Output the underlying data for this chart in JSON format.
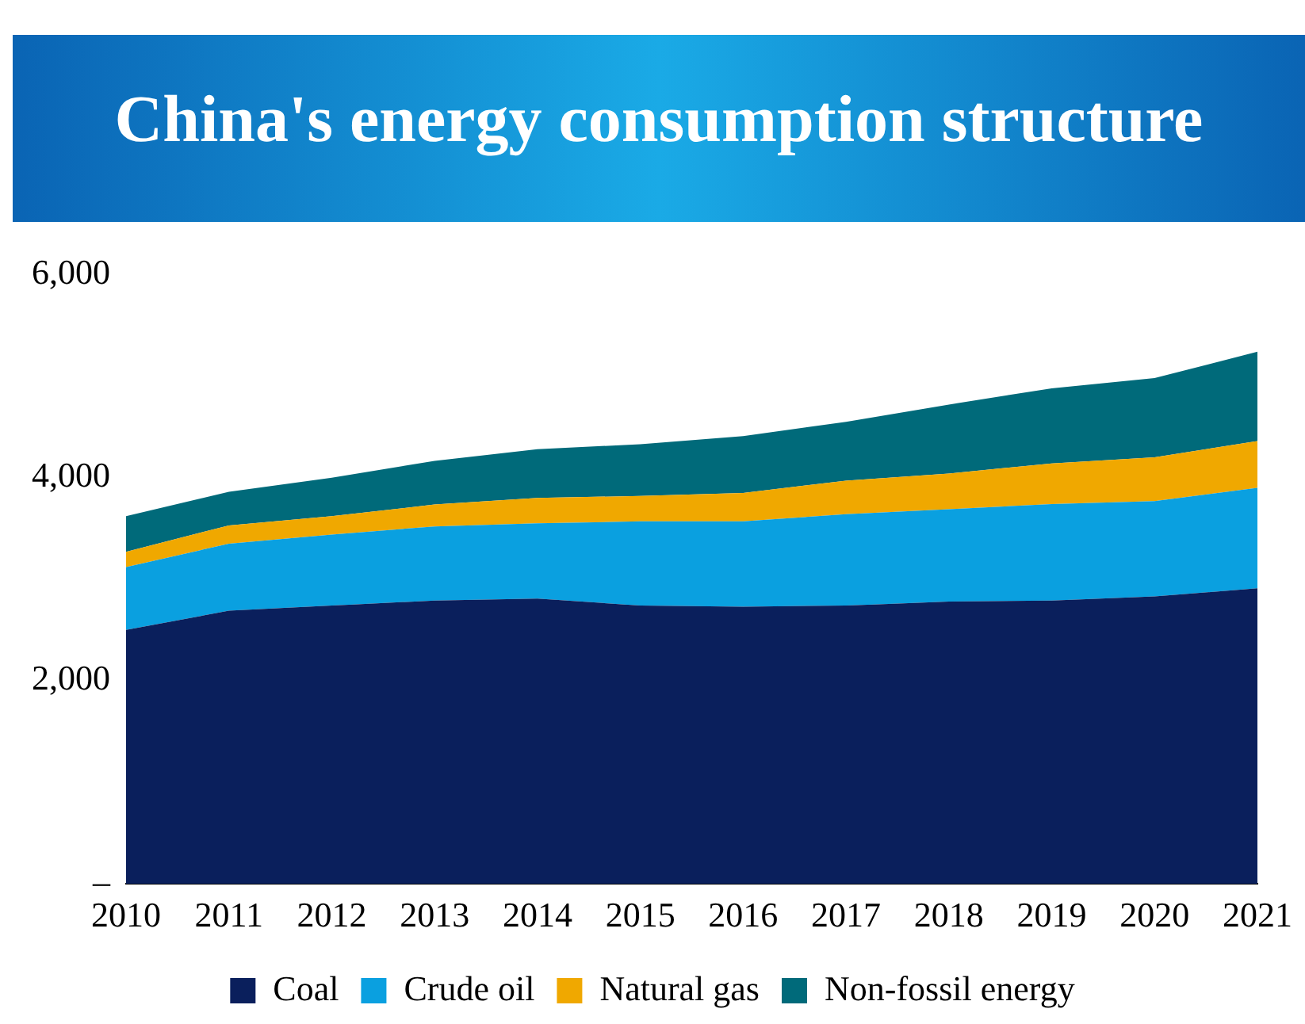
{
  "chart_data": {
    "type": "area",
    "stacked": true,
    "title": "China's energy consumption structure",
    "categories": [
      "2010",
      "2011",
      "2012",
      "2013",
      "2014",
      "2015",
      "2016",
      "2017",
      "2018",
      "2019",
      "2020",
      "2021"
    ],
    "series": [
      {
        "name": "Coal",
        "color": "#0a1f5c",
        "values": [
          2500,
          2690,
          2740,
          2790,
          2810,
          2740,
          2730,
          2740,
          2780,
          2790,
          2830,
          2910
        ]
      },
      {
        "name": "Crude oil",
        "color": "#0aa0e0",
        "values": [
          620,
          660,
          700,
          730,
          740,
          830,
          840,
          900,
          910,
          950,
          940,
          990
        ]
      },
      {
        "name": "Natural gas",
        "color": "#f0a800",
        "values": [
          150,
          180,
          180,
          215,
          250,
          250,
          280,
          330,
          350,
          400,
          430,
          460
        ]
      },
      {
        "name": "Non-fossil energy",
        "color": "#006a7a",
        "values": [
          350,
          330,
          380,
          430,
          480,
          510,
          560,
          580,
          680,
          740,
          780,
          880
        ]
      }
    ],
    "ylim": [
      0,
      6000
    ],
    "yticks": [
      {
        "value": 0,
        "label": "–"
      },
      {
        "value": 2000,
        "label": "2,000"
      },
      {
        "value": 4000,
        "label": "4,000"
      },
      {
        "value": 6000,
        "label": "6,000"
      }
    ],
    "grid": false,
    "legend": "bottom"
  }
}
